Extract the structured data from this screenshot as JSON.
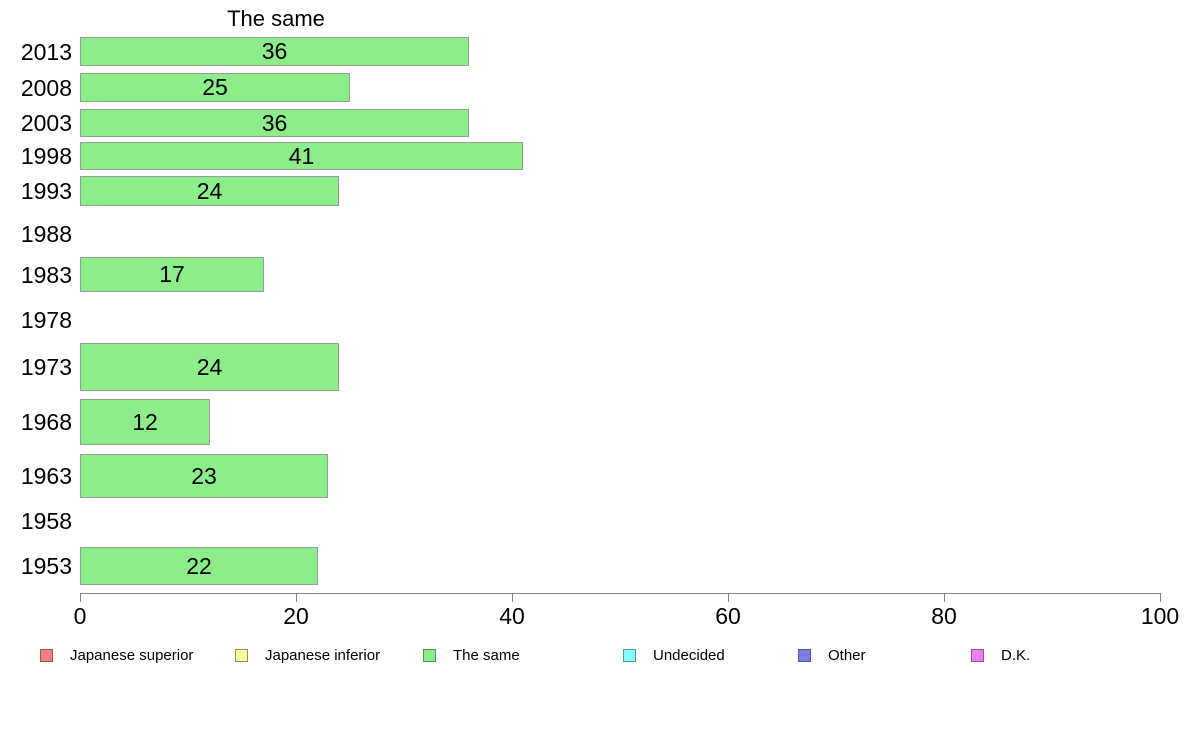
{
  "chart_data": {
    "type": "bar",
    "orientation": "horizontal",
    "title": "The same",
    "series_name": "The same",
    "categories": [
      "2013",
      "2008",
      "2003",
      "1998",
      "1993",
      "1988",
      "1983",
      "1978",
      "1973",
      "1968",
      "1963",
      "1958",
      "1953"
    ],
    "values": [
      36,
      25,
      36,
      41,
      24,
      null,
      17,
      null,
      24,
      12,
      23,
      null,
      22
    ],
    "xlabel": "",
    "ylabel": "",
    "xlim": [
      0,
      100
    ],
    "x_ticks": [
      0,
      20,
      40,
      60,
      80,
      100
    ],
    "grid": false,
    "bar_color": "#8bee8b",
    "bar_border_color": "#999999",
    "axis_color": "#808080",
    "legend_position": "bottom",
    "legend": [
      {
        "label": "Japanese superior",
        "color": "#f08080"
      },
      {
        "label": "Japanese inferior",
        "color": "#fbfb9a"
      },
      {
        "label": "The same",
        "color": "#8bee8b"
      },
      {
        "label": "Undecided",
        "color": "#86ffff"
      },
      {
        "label": "Other",
        "color": "#7d7de8"
      },
      {
        "label": "D.K.",
        "color": "#ee7dee"
      }
    ]
  }
}
